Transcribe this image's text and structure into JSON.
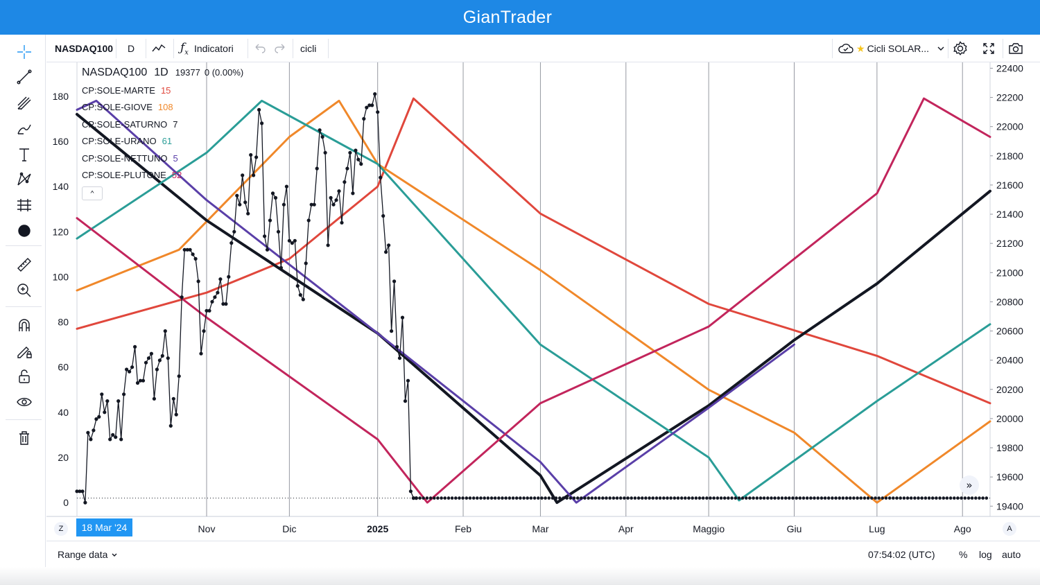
{
  "app": {
    "title": "GianTrader"
  },
  "toolbar": {
    "symbol": "NASDAQ100",
    "interval": "D",
    "indicators_label": "Indicatori",
    "template_label": "cicli",
    "layout_label": "Cicli SOLAR...",
    "icons": [
      "line-chart-icon",
      "function-icon",
      "undo-icon",
      "redo-icon",
      "cloud-icon",
      "star-icon",
      "chevron-down-icon",
      "gear-icon",
      "fullscreen-icon",
      "camera-icon"
    ]
  },
  "left_tools": [
    "crosshair-icon",
    "trend-line-icon",
    "pitchfork-icon",
    "brush-icon",
    "text-icon",
    "pattern-icon",
    "prediction-icon",
    "dot-icon",
    "ruler-icon",
    "zoom-in-icon",
    "magnet-icon",
    "lock-drawing-icon",
    "unlock-icon",
    "eye-icon",
    "trash-icon"
  ],
  "legend": {
    "symbol": "NASDAQ100",
    "interval": "1D",
    "price": "19377",
    "change": "0 (0.00%)",
    "collapse_glyph": "⌃",
    "rows": [
      {
        "name": "CP:SOLE-MARTE",
        "value": "15",
        "color": "#e0473c"
      },
      {
        "name": "CP:SOLE-GIOVE",
        "value": "108",
        "color": "#f0882a"
      },
      {
        "name": "CP:SOLE-SATURNO",
        "value": "7",
        "color": "#131722"
      },
      {
        "name": "CP:SOLE-URANO",
        "value": "61",
        "color": "#2a9d97"
      },
      {
        "name": "CP:SOLE-NETTUNO",
        "value": "5",
        "color": "#5a3fa8"
      },
      {
        "name": "CP:SOLE-PLUTONE",
        "value": "52",
        "color": "#c2255c"
      }
    ]
  },
  "time_axis": {
    "badge": "18 Mar '24",
    "z_label": "Z",
    "a_label": "A",
    "scroll_glyph": "»"
  },
  "bottom_bar": {
    "range_label": "Range data",
    "clock": "07:54:02 (UTC)",
    "percent": "%",
    "log": "log",
    "auto": "auto"
  },
  "chart_data": {
    "type": "line",
    "x_ticks": [
      {
        "label": "Nov",
        "bold": false,
        "grid": true
      },
      {
        "label": "Dic",
        "bold": false,
        "grid": true
      },
      {
        "label": "2025",
        "bold": true,
        "grid": true
      },
      {
        "label": "Feb",
        "bold": false,
        "grid": true
      },
      {
        "label": "Mar",
        "bold": false,
        "grid": true
      },
      {
        "label": "Apr",
        "bold": false,
        "grid": true
      },
      {
        "label": "Maggio",
        "bold": false,
        "grid": true
      },
      {
        "label": "Giu",
        "bold": false,
        "grid": true
      },
      {
        "label": "Lug",
        "bold": false,
        "grid": true
      },
      {
        "label": "Ago",
        "bold": false,
        "grid": true
      }
    ],
    "x_tick_days": [
      0,
      30,
      62,
      93,
      121,
      152,
      182,
      213,
      243,
      274
    ],
    "x_range": [
      -47,
      284
    ],
    "left_axis": {
      "ticks": [
        0,
        20,
        40,
        60,
        80,
        100,
        120,
        140,
        160,
        180
      ],
      "ylim": [
        -6.1,
        195
      ]
    },
    "right_axis": {
      "ticks": [
        19400,
        19600,
        19800,
        20000,
        20200,
        20400,
        20600,
        20800,
        21000,
        21200,
        21400,
        21600,
        21800,
        22000,
        22200,
        22400
      ],
      "ylim": [
        19330,
        22440
      ]
    },
    "baseline_value": 2,
    "series": [
      {
        "name": "CP:SOLE-MARTE",
        "color": "#e0473c",
        "width": 3,
        "points": [
          [
            -47,
            77
          ],
          [
            0,
            93
          ],
          [
            30,
            108
          ],
          [
            62,
            140
          ],
          [
            75,
            179
          ],
          [
            121,
            128
          ],
          [
            182,
            88
          ],
          [
            243,
            65
          ],
          [
            284,
            44
          ]
        ]
      },
      {
        "name": "CP:SOLE-GIOVE",
        "color": "#f0882a",
        "width": 3,
        "points": [
          [
            -47,
            94
          ],
          [
            -10,
            112
          ],
          [
            30,
            162
          ],
          [
            48,
            178
          ],
          [
            62,
            150
          ],
          [
            121,
            103
          ],
          [
            182,
            50
          ],
          [
            213,
            31
          ],
          [
            243,
            0
          ],
          [
            284,
            36
          ]
        ]
      },
      {
        "name": "CP:SOLE-SATURNO",
        "color": "#131722",
        "width": 4,
        "points": [
          [
            -47,
            172
          ],
          [
            0,
            125
          ],
          [
            62,
            75
          ],
          [
            121,
            12
          ],
          [
            127,
            0
          ],
          [
            182,
            43
          ],
          [
            213,
            72
          ],
          [
            243,
            97
          ],
          [
            284,
            138
          ]
        ]
      },
      {
        "name": "CP:SOLE-URANO",
        "color": "#2a9d97",
        "width": 3,
        "points": [
          [
            -47,
            117
          ],
          [
            0,
            155
          ],
          [
            20,
            178
          ],
          [
            62,
            150
          ],
          [
            121,
            70
          ],
          [
            182,
            20
          ],
          [
            193,
            1
          ],
          [
            243,
            45
          ],
          [
            284,
            79
          ]
        ]
      },
      {
        "name": "CP:SOLE-NETTUNO",
        "color": "#5a3fa8",
        "width": 3,
        "points": [
          [
            -47,
            174
          ],
          [
            -40,
            178
          ],
          [
            0,
            134
          ],
          [
            62,
            75
          ],
          [
            121,
            18
          ],
          [
            134,
            0
          ],
          [
            182,
            42
          ],
          [
            213,
            70
          ]
        ]
      },
      {
        "name": "CP:SOLE-PLUTONE",
        "color": "#c2255c",
        "width": 3,
        "points": [
          [
            -47,
            126
          ],
          [
            0,
            82
          ],
          [
            62,
            28
          ],
          [
            80,
            0
          ],
          [
            121,
            44
          ],
          [
            182,
            78
          ],
          [
            243,
            137
          ],
          [
            260,
            179
          ],
          [
            284,
            162
          ]
        ]
      }
    ],
    "price_series": {
      "name": "NASDAQ100",
      "color": "#131722",
      "points": [
        [
          -47,
          5
        ],
        [
          -46,
          5
        ],
        [
          -45,
          5
        ],
        [
          -44,
          0
        ],
        [
          -43,
          31
        ],
        [
          -42,
          28
        ],
        [
          -41,
          32
        ],
        [
          -40,
          37
        ],
        [
          -39,
          38
        ],
        [
          -38,
          48
        ],
        [
          -37,
          40
        ],
        [
          -36,
          45
        ],
        [
          -35,
          28
        ],
        [
          -34,
          30
        ],
        [
          -33,
          29
        ],
        [
          -32,
          45
        ],
        [
          -31,
          28
        ],
        [
          -30,
          48
        ],
        [
          -29,
          59
        ],
        [
          -28,
          58
        ],
        [
          -27,
          60
        ],
        [
          -26,
          69
        ],
        [
          -25,
          53
        ],
        [
          -24,
          54
        ],
        [
          -23,
          54
        ],
        [
          -22,
          62
        ],
        [
          -21,
          64
        ],
        [
          -20,
          66
        ],
        [
          -19,
          46
        ],
        [
          -18,
          59
        ],
        [
          -17,
          63
        ],
        [
          -16,
          65
        ],
        [
          -15,
          76
        ],
        [
          -14,
          64
        ],
        [
          -13,
          34
        ],
        [
          -12,
          46
        ],
        [
          -11,
          39
        ],
        [
          -10,
          56
        ],
        [
          -9,
          91
        ],
        [
          -8,
          112
        ],
        [
          -7,
          112
        ],
        [
          -6,
          112
        ],
        [
          -5,
          110
        ],
        [
          -4,
          108
        ],
        [
          -3,
          98
        ],
        [
          -2,
          66
        ],
        [
          -1,
          76
        ],
        [
          0,
          85
        ],
        [
          1,
          85
        ],
        [
          2,
          89
        ],
        [
          3,
          91
        ],
        [
          4,
          93
        ],
        [
          5,
          99
        ],
        [
          6,
          88
        ],
        [
          7,
          88
        ],
        [
          8,
          100
        ],
        [
          9,
          115
        ],
        [
          10,
          120
        ],
        [
          11,
          136
        ],
        [
          12,
          132
        ],
        [
          13,
          145
        ],
        [
          14,
          133
        ],
        [
          15,
          128
        ],
        [
          16,
          154
        ],
        [
          17,
          145
        ],
        [
          18,
          153
        ],
        [
          19,
          174
        ],
        [
          20,
          168
        ],
        [
          21,
          118
        ],
        [
          22,
          112
        ],
        [
          23,
          125
        ],
        [
          24,
          137
        ],
        [
          25,
          135
        ],
        [
          26,
          120
        ],
        [
          27,
          104
        ],
        [
          28,
          132
        ],
        [
          29,
          140
        ],
        [
          30,
          116
        ],
        [
          31,
          115
        ],
        [
          32,
          116
        ],
        [
          33,
          96
        ],
        [
          34,
          92
        ],
        [
          35,
          90
        ],
        [
          36,
          106
        ],
        [
          37,
          125
        ],
        [
          38,
          132
        ],
        [
          39,
          132
        ],
        [
          40,
          148
        ],
        [
          41,
          165
        ],
        [
          42,
          162
        ],
        [
          43,
          155
        ],
        [
          44,
          114
        ],
        [
          45,
          135
        ],
        [
          46,
          132
        ],
        [
          47,
          134
        ],
        [
          48,
          138
        ],
        [
          49,
          124
        ],
        [
          50,
          142
        ],
        [
          51,
          148
        ],
        [
          52,
          155
        ],
        [
          53,
          137
        ],
        [
          54,
          156
        ],
        [
          55,
          152
        ],
        [
          56,
          150
        ],
        [
          57,
          170
        ],
        [
          58,
          175
        ],
        [
          59,
          176
        ],
        [
          60,
          176
        ],
        [
          61,
          181
        ],
        [
          62,
          173
        ],
        [
          63,
          144
        ],
        [
          64,
          127
        ],
        [
          65,
          111
        ],
        [
          66,
          114
        ],
        [
          67,
          76
        ],
        [
          68,
          98
        ],
        [
          69,
          69
        ],
        [
          70,
          64
        ],
        [
          71,
          82
        ],
        [
          72,
          45
        ],
        [
          73,
          54
        ],
        [
          74,
          5
        ],
        [
          75,
          2
        ],
        [
          76,
          2
        ]
      ]
    }
  }
}
